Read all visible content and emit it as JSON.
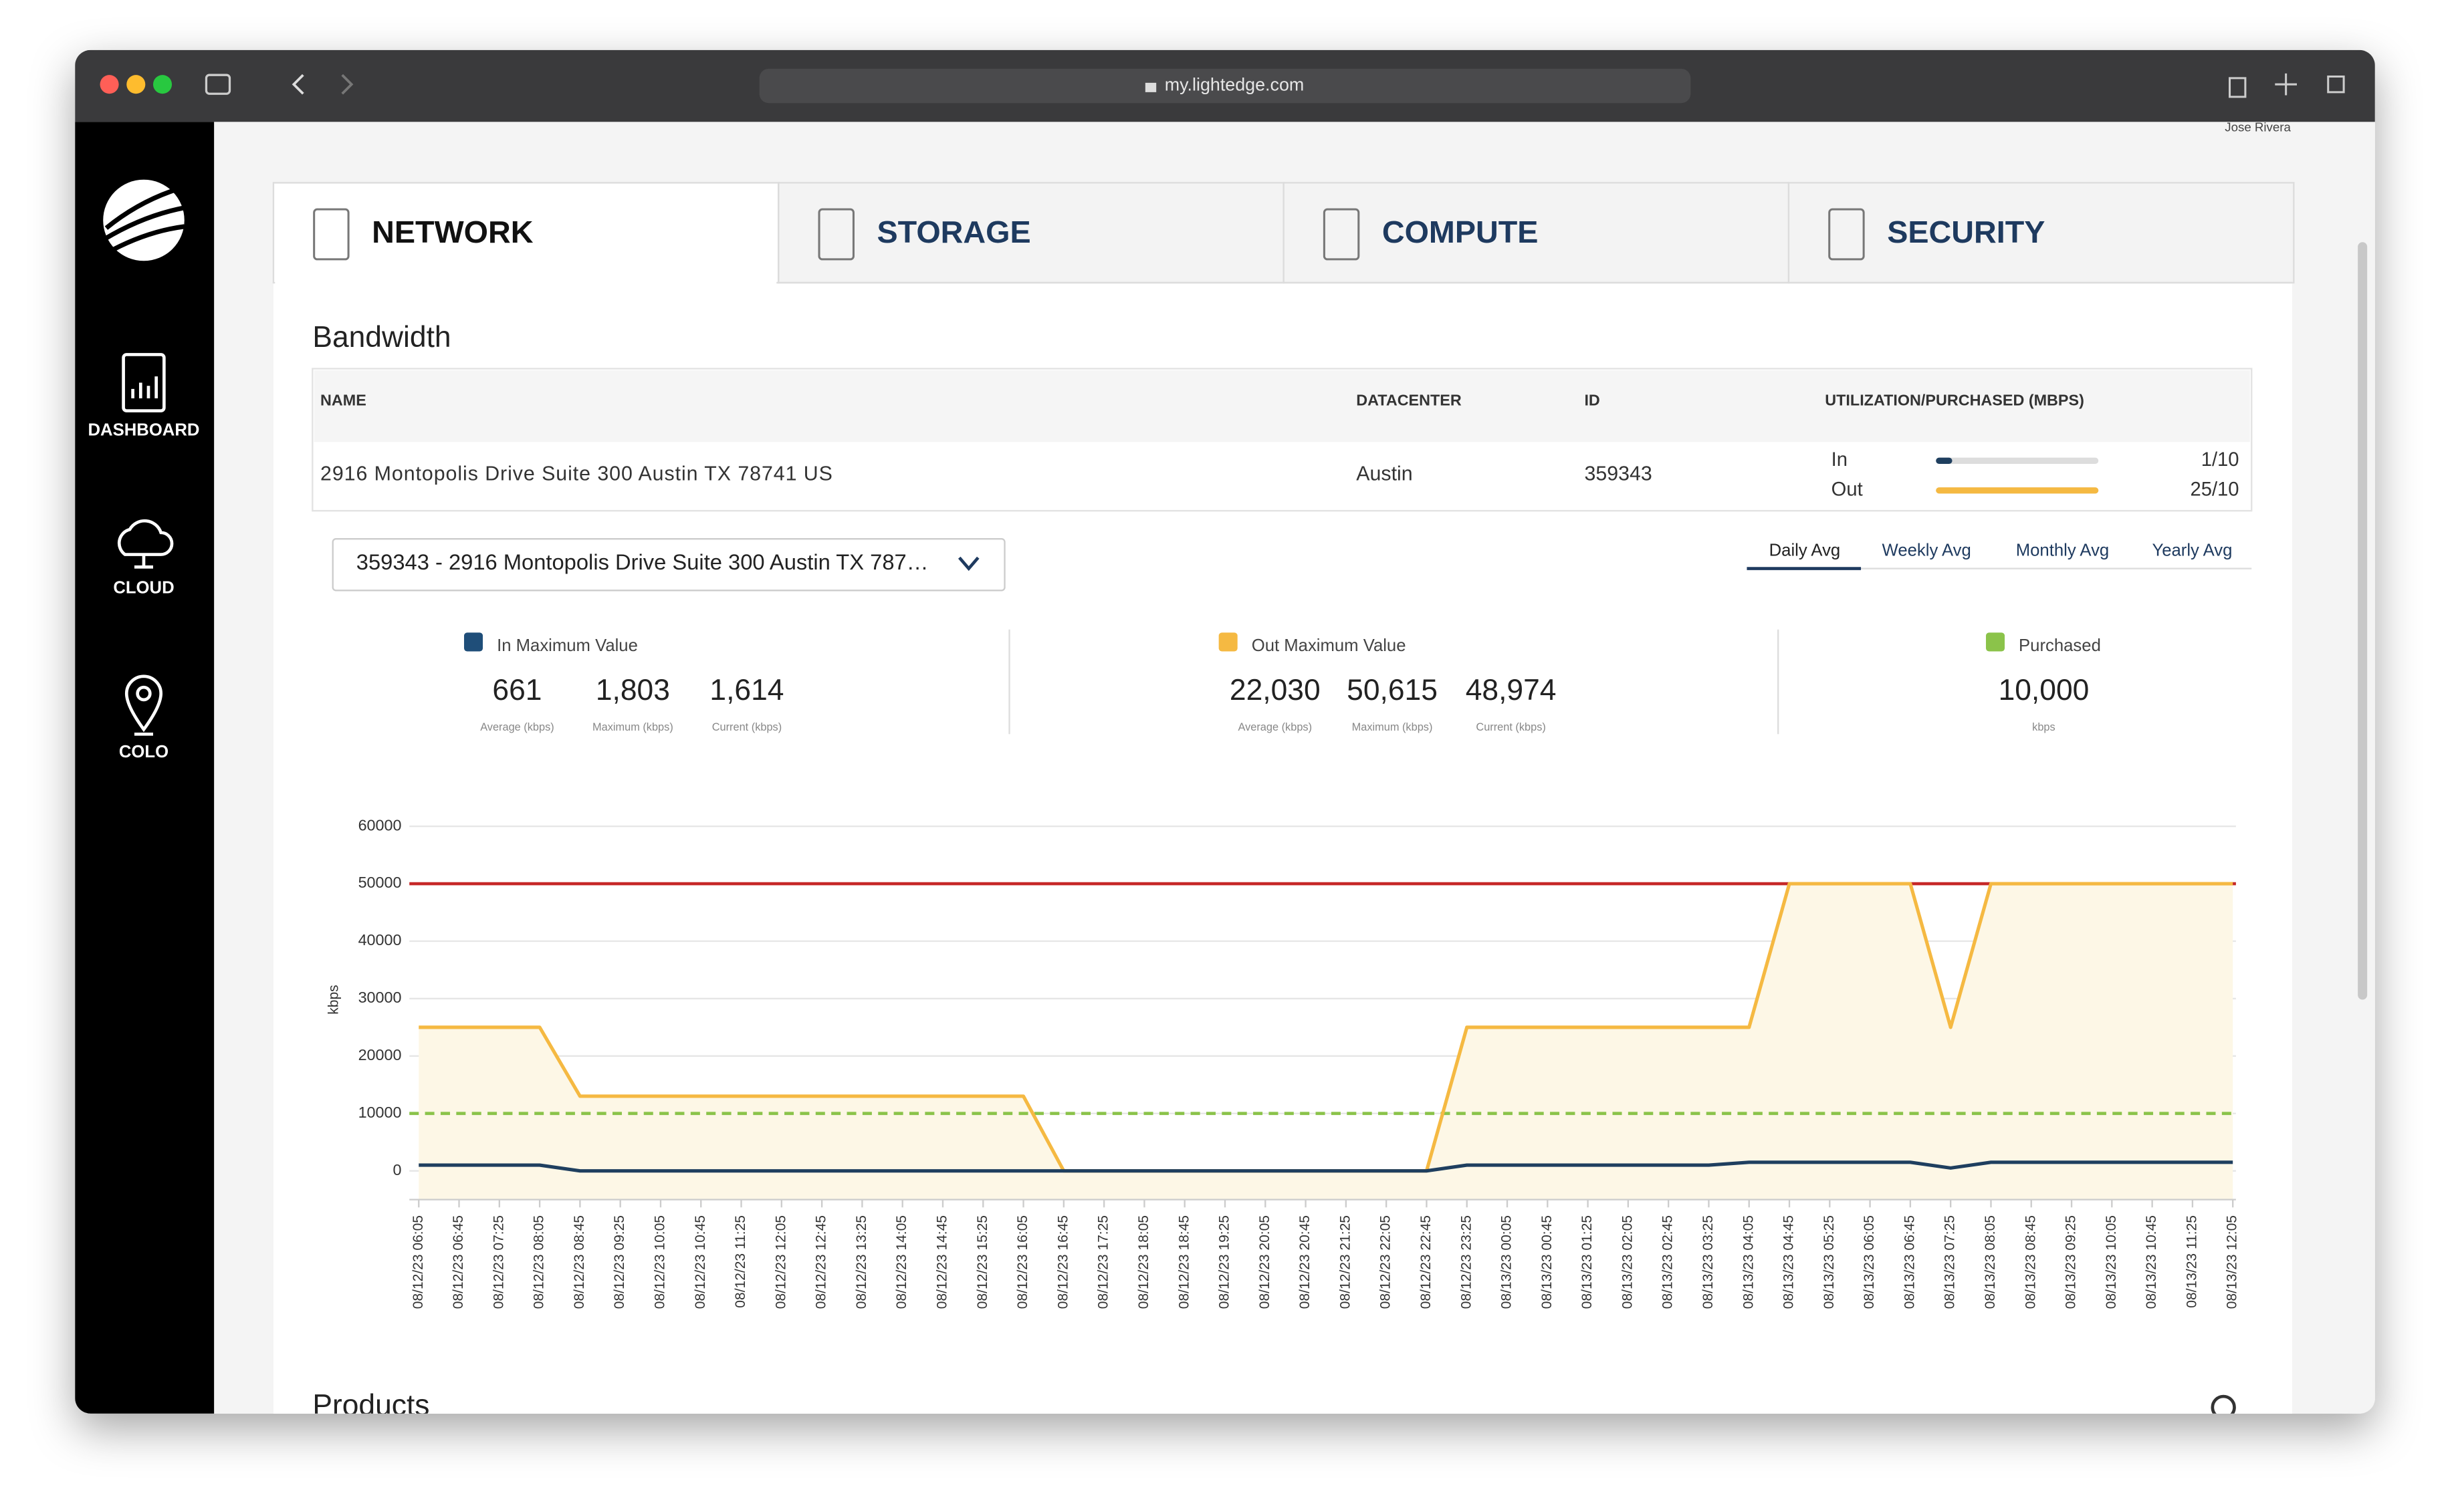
{
  "browser": {
    "url": "my.lightedge.com"
  },
  "header": {
    "user": "Jose Rivera"
  },
  "sidebar": {
    "items": [
      "DASHBOARD",
      "CLOUD",
      "COLO"
    ]
  },
  "tabs": [
    "NETWORK",
    "STORAGE",
    "COMPUTE",
    "SECURITY"
  ],
  "bandwidth": {
    "title": "Bandwidth",
    "columns": [
      "NAME",
      "DATACENTER",
      "ID",
      "UTILIZATION/PURCHASED (MBPS)"
    ],
    "row": {
      "name": "2916 Montopolis Drive Suite 300 Austin TX 78741 US",
      "datacenter": "Austin",
      "id": "359343",
      "in_label": "In",
      "in_value": "1/10",
      "out_label": "Out",
      "out_value": "25/10"
    }
  },
  "selector": "359343 - 2916 Montopolis Drive Suite 300 Austin TX 787…",
  "periods": [
    "Daily Avg",
    "Weekly Avg",
    "Monthly Avg",
    "Yearly Avg"
  ],
  "stats": [
    {
      "label": "In Maximum Value",
      "color": "#1f4e79",
      "values": [
        "661",
        "1,803",
        "1,614"
      ],
      "captions": [
        "Average (kbps)",
        "Maximum (kbps)",
        "Current (kbps)"
      ]
    },
    {
      "label": "Out Maximum Value",
      "color": "#f5b942",
      "values": [
        "22,030",
        "50,615",
        "48,974"
      ],
      "captions": [
        "Average (kbps)",
        "Maximum (kbps)",
        "Current (kbps)"
      ]
    },
    {
      "label": "Purchased",
      "color": "#8bc34a",
      "values": [
        "10,000"
      ],
      "captions": [
        "kbps"
      ]
    }
  ],
  "chart": {
    "type": "line",
    "y_label": "kbps",
    "x": [
      "08/12/23 06:05",
      "08/12/23 06:45",
      "08/12/23 07:25",
      "08/12/23 08:05",
      "08/12/23 08:45",
      "08/12/23 09:25",
      "08/12/23 10:05",
      "08/12/23 10:45",
      "08/12/23 11:25",
      "08/12/23 12:05",
      "08/12/23 12:45",
      "08/12/23 13:25",
      "08/12/23 14:05",
      "08/12/23 14:45",
      "08/12/23 15:25",
      "08/12/23 16:05",
      "08/12/23 16:45",
      "08/12/23 17:25",
      "08/12/23 18:05",
      "08/12/23 18:45",
      "08/12/23 19:25",
      "08/12/23 20:05",
      "08/12/23 20:45",
      "08/12/23 21:25",
      "08/12/23 22:05",
      "08/12/23 22:45",
      "08/12/23 23:25",
      "08/13/23 00:05",
      "08/13/23 00:45",
      "08/13/23 01:25",
      "08/13/23 02:05",
      "08/13/23 02:45",
      "08/13/23 03:25",
      "08/13/23 04:05",
      "08/13/23 04:45",
      "08/13/23 05:25",
      "08/13/23 06:05",
      "08/13/23 06:45",
      "08/13/23 07:25",
      "08/13/23 08:05",
      "08/13/23 08:45",
      "08/13/23 09:25",
      "08/13/23 10:05",
      "08/13/23 10:45",
      "08/13/23 11:25",
      "08/13/23 12:05"
    ],
    "series": [
      {
        "color": "#f5b942",
        "values": [
          25000,
          25000,
          25000,
          25000,
          13000,
          13000,
          13000,
          13000,
          13000,
          13000,
          13000,
          13000,
          13000,
          13000,
          13000,
          13000,
          0,
          0,
          0,
          0,
          0,
          0,
          0,
          0,
          0,
          0,
          25000,
          25000,
          25000,
          25000,
          25000,
          25000,
          25000,
          25000,
          50000,
          50000,
          50000,
          50000,
          25000,
          50000,
          50000,
          50000,
          50000,
          50000,
          50000,
          50000
        ]
      },
      {
        "color": "#1f3f5f",
        "values": [
          1000,
          1000,
          1000,
          1000,
          0,
          0,
          0,
          0,
          0,
          0,
          0,
          0,
          0,
          0,
          0,
          0,
          0,
          0,
          0,
          0,
          0,
          0,
          0,
          0,
          0,
          0,
          1000,
          1000,
          1000,
          1000,
          1000,
          1000,
          1000,
          1500,
          1500,
          1500,
          1500,
          1500,
          500,
          1500,
          1500,
          1500,
          1500,
          1500,
          1500,
          1500
        ]
      }
    ],
    "thresholds": [
      {
        "value": 50000,
        "color": "#c62828"
      },
      {
        "value": 10000,
        "color": "#8bc34a",
        "dashed": true
      }
    ],
    "ylim": [
      -5000,
      60000
    ],
    "yticks": [
      0,
      10000,
      20000,
      30000,
      40000,
      50000,
      60000
    ],
    "grid": true
  },
  "products": {
    "title": "Products"
  }
}
